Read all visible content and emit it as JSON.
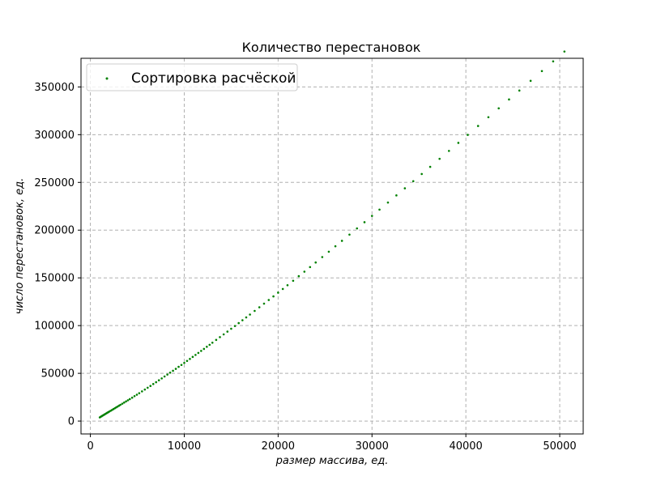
{
  "chart_data": {
    "type": "scatter",
    "title": "Количество перестановок",
    "xlabel": "размер массива, ед.",
    "ylabel": "число перестановок, ед.",
    "xlim": [
      -1000,
      52500
    ],
    "ylim": [
      -13500,
      380000
    ],
    "xticks": [
      0,
      10000,
      20000,
      30000,
      40000,
      50000
    ],
    "yticks": [
      0,
      50000,
      100000,
      150000,
      200000,
      250000,
      300000,
      350000
    ],
    "grid": true,
    "legend_position": "upper-left",
    "series": [
      {
        "name": "Сортировка расчёской",
        "color": "#008000",
        "marker": "point",
        "x": [
          1000,
          1100,
          1200,
          1300,
          1400,
          1500,
          1600,
          1700,
          1800,
          1900,
          2000,
          2150,
          2300,
          2450,
          2600,
          2750,
          2900,
          3050,
          3200,
          3400,
          3600,
          3800,
          4000,
          4200,
          4450,
          4700,
          4950,
          5200,
          5500,
          5800,
          6100,
          6400,
          6700,
          7000,
          7300,
          7600,
          7900,
          8200,
          8500,
          8800,
          9100,
          9400,
          9700,
          10000,
          10300,
          10600,
          10900,
          11200,
          11500,
          11800,
          12100,
          12400,
          12700,
          13000,
          13400,
          13800,
          14200,
          14600,
          15000,
          15400,
          15800,
          16200,
          16600,
          17000,
          17500,
          18000,
          18500,
          19000,
          19500,
          20000,
          20500,
          21000,
          21600,
          22200,
          22800,
          23400,
          24000,
          24700,
          25400,
          26100,
          26800,
          27600,
          28400,
          29200,
          30000,
          30800,
          31700,
          32600,
          33500,
          34400,
          35300,
          36200,
          37200,
          38200,
          39200,
          40200,
          41300,
          42400,
          43500,
          44600,
          45700,
          46900,
          48100,
          49300,
          50500
        ],
        "y": [
          3850,
          4500,
          5100,
          5700,
          6300,
          6900,
          7500,
          8100,
          8700,
          9300,
          9900,
          10700,
          11600,
          12500,
          13400,
          14300,
          15200,
          16100,
          17000,
          18200,
          19400,
          20600,
          21800,
          23000,
          24500,
          26100,
          27600,
          29200,
          31100,
          33000,
          34900,
          36800,
          38800,
          40700,
          42700,
          44700,
          46700,
          48700,
          50700,
          52700,
          54700,
          56800,
          58800,
          60900,
          63000,
          65100,
          67200,
          69300,
          71400,
          73500,
          75600,
          77800,
          79900,
          82100,
          85000,
          87900,
          90800,
          93700,
          96700,
          99600,
          102600,
          105600,
          108600,
          111600,
          115400,
          119200,
          123000,
          126800,
          130600,
          134500,
          138400,
          142300,
          147000,
          151800,
          156500,
          161300,
          166100,
          171800,
          177400,
          183100,
          188800,
          195300,
          201800,
          208300,
          214900,
          221500,
          228900,
          236400,
          243800,
          251300,
          258800,
          266300,
          274700,
          283000,
          291400,
          299800,
          309100,
          318300,
          327600,
          336900,
          346200,
          356400,
          366600,
          376800,
          387100
        ]
      }
    ]
  }
}
